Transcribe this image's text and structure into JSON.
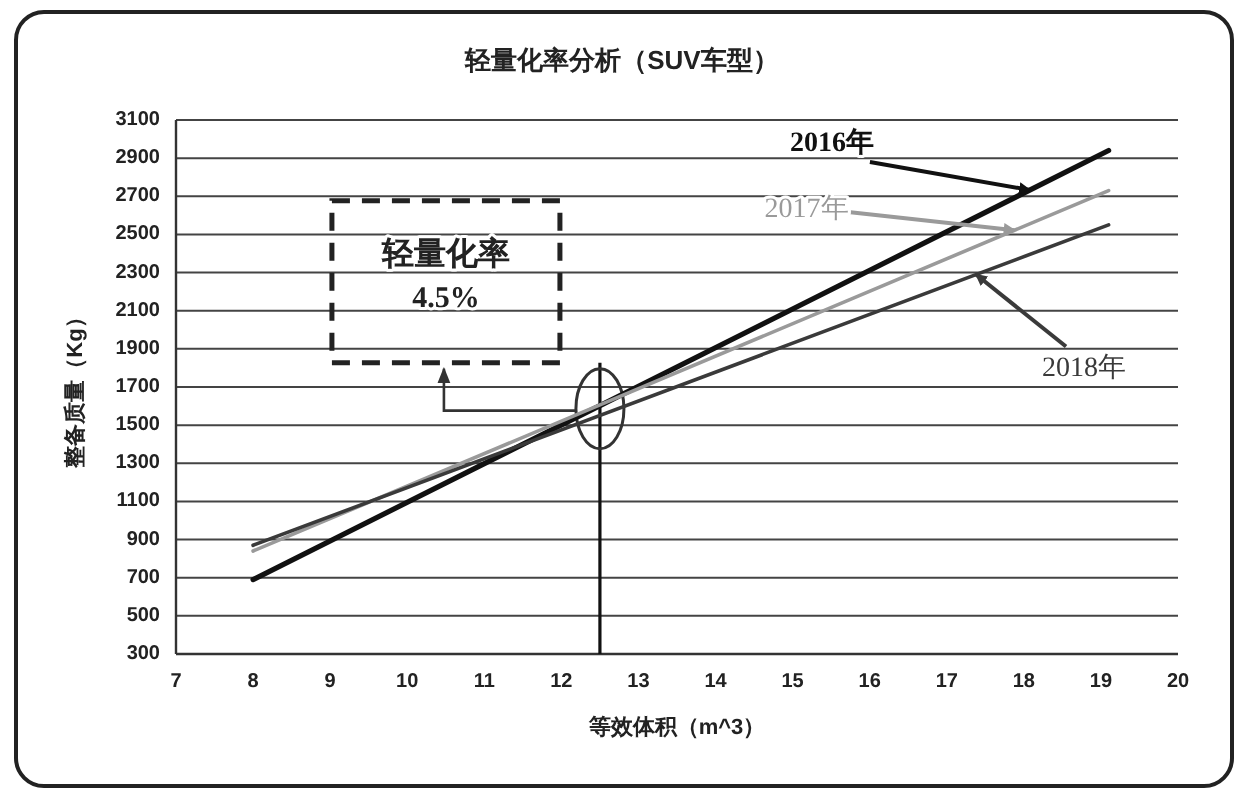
{
  "chart_data": {
    "type": "line",
    "title": "轻量化率分析（SUV车型）",
    "xlabel": "等效体积（m^3）",
    "ylabel": "整备质量（Kg）",
    "x": [
      8,
      19.1
    ],
    "series": [
      {
        "name": "2016年",
        "color": "#111111",
        "values": [
          690,
          2940
        ]
      },
      {
        "name": "2017年",
        "color": "#9a9a9a",
        "values": [
          840,
          2730
        ]
      },
      {
        "name": "2018年",
        "color": "#3a3a3a",
        "values": [
          870,
          2550
        ]
      }
    ],
    "xlim": [
      7,
      20
    ],
    "xticks": [
      7,
      8,
      9,
      10,
      11,
      12,
      13,
      14,
      15,
      16,
      17,
      18,
      19,
      20
    ],
    "ylim": [
      300,
      3100
    ],
    "yticks": [
      300,
      500,
      700,
      900,
      1100,
      1300,
      1500,
      1700,
      1900,
      2100,
      2300,
      2500,
      2700,
      2900,
      3100
    ],
    "grid": "y",
    "ref_lines": [
      {
        "axis": "x",
        "value": 12.5
      }
    ],
    "annotations": [
      "轻量化率\n4.5%"
    ]
  }
}
